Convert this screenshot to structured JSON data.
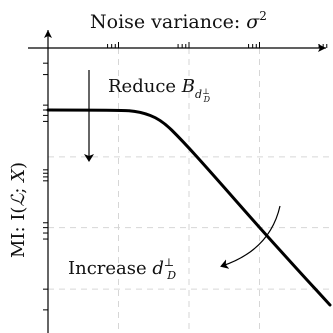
{
  "chart_data": {
    "type": "line",
    "title": "",
    "xscale": "log",
    "yscale": "log",
    "grid": true,
    "x_tick_labels": false,
    "y_tick_labels": false,
    "series": [
      {
        "name": "",
        "x": [
          1,
          10,
          20,
          40,
          80,
          200,
          1000,
          4000,
          10000
        ],
        "y": [
          10,
          10,
          9.7,
          8.3,
          5.5,
          3.0,
          1.0,
          0.4,
          0.22
        ]
      }
    ],
    "annotations": [
      {
        "kind": "arrow",
        "direction": "down",
        "label_main": "Reduce ",
        "label_var": "B",
        "label_sub": "d",
        "label_subsub": "⊥",
        "label_subsub2": "D"
      },
      {
        "kind": "arrow",
        "direction": "curved-down-left",
        "label_main": "Increase ",
        "label_var": "d",
        "label_sup": "⊥",
        "label_sub": "D"
      }
    ],
    "xlabel_parts": {
      "text": "Noise variance: ",
      "var": "σ",
      "sup": "2"
    },
    "ylabel_parts": {
      "prefix": "MI: I(",
      "calL": "ℒ",
      "mid": "; ",
      "var": "X",
      "suffix": ")"
    }
  }
}
